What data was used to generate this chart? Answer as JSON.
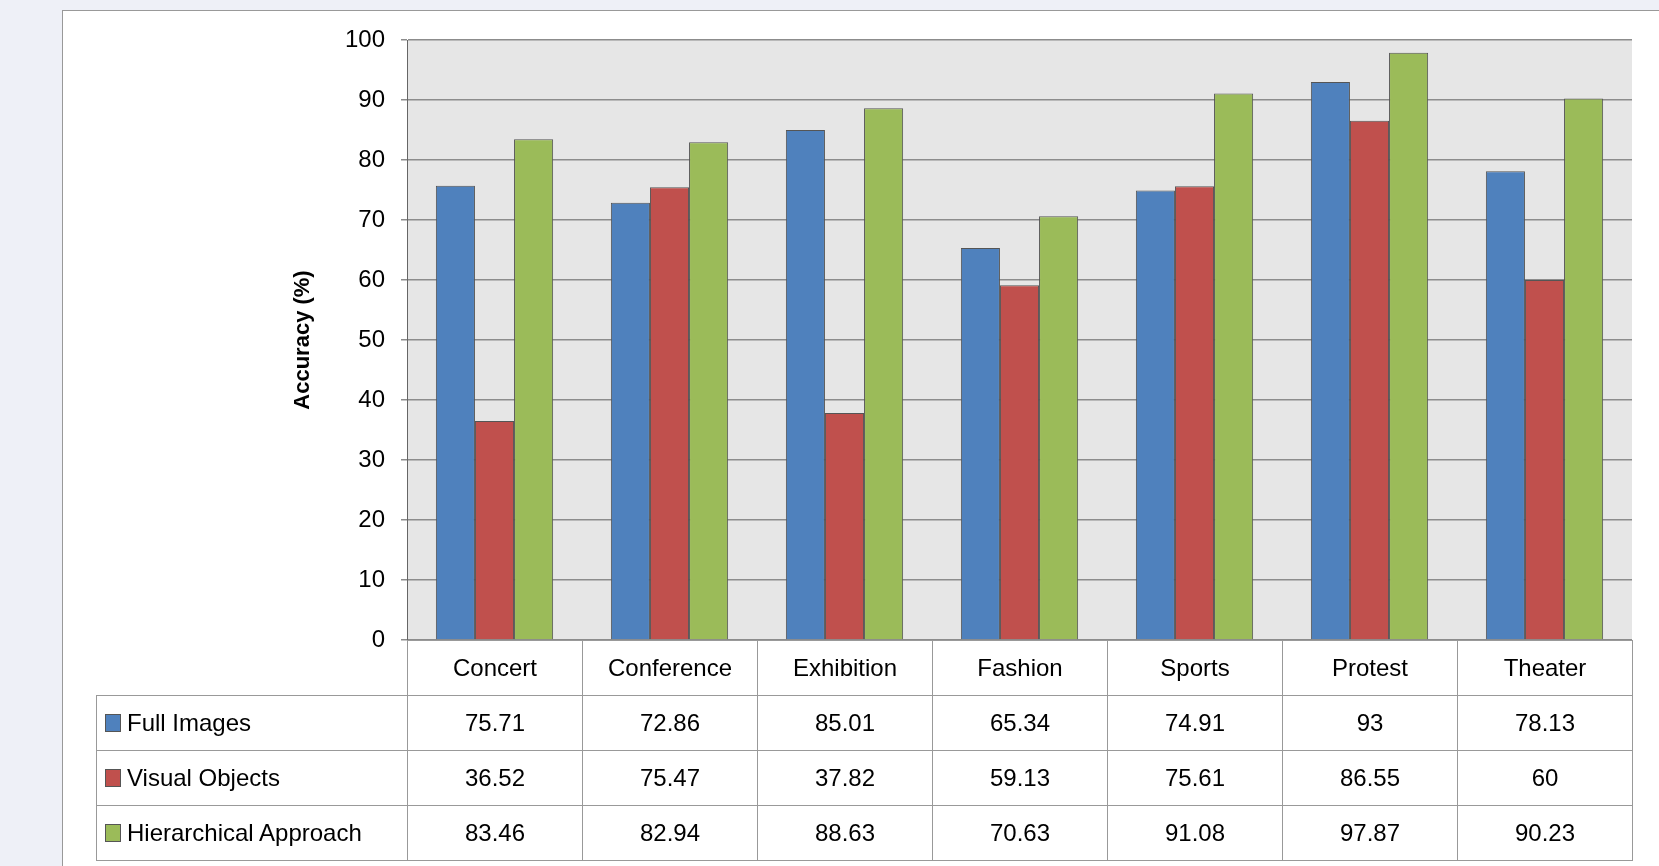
{
  "chart_data": {
    "type": "bar",
    "ylabel": "Accuracy (%)",
    "categories": [
      "Concert",
      "Conference",
      "Exhibition",
      "Fashion",
      "Sports",
      "Protest",
      "Theater"
    ],
    "series": [
      {
        "name": "Full Images",
        "color": "#4f81bd",
        "values": [
          75.71,
          72.86,
          85.01,
          65.34,
          74.91,
          93,
          78.13
        ]
      },
      {
        "name": "Visual Objects",
        "color": "#c0504d",
        "values": [
          36.52,
          75.47,
          37.82,
          59.13,
          75.61,
          86.55,
          60
        ]
      },
      {
        "name": "Hierarchical Approach",
        "color": "#9bbb59",
        "values": [
          83.46,
          82.94,
          88.63,
          70.63,
          91.08,
          97.87,
          90.23
        ]
      }
    ],
    "ylim": [
      0,
      100
    ],
    "yticks": [
      0,
      10,
      20,
      30,
      40,
      50,
      60,
      70,
      80,
      90,
      100
    ],
    "grid": "y",
    "legend": "bottom left",
    "data_labels": true
  }
}
